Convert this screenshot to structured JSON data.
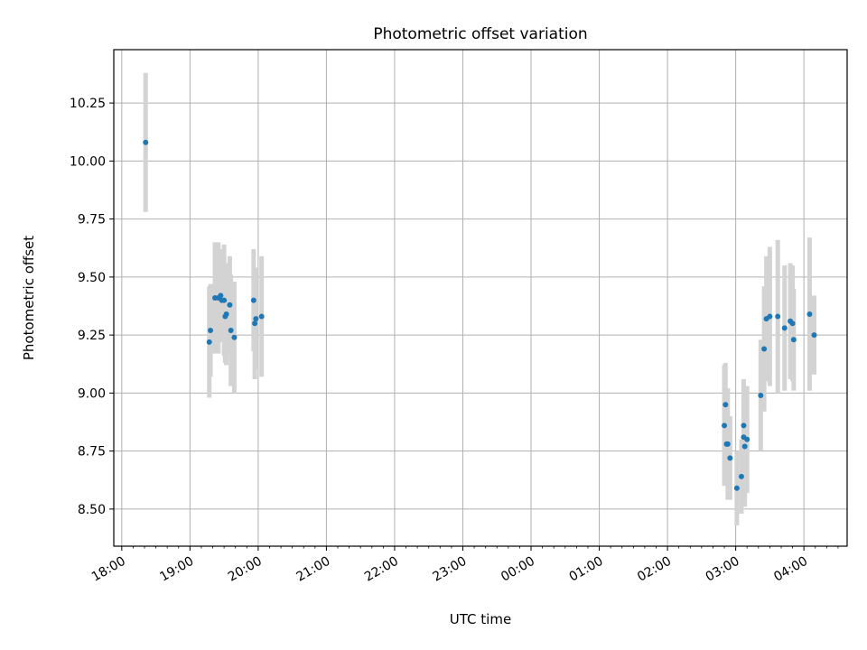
{
  "chart_data": {
    "type": "scatter",
    "title": "Photometric offset variation",
    "xlabel": "UTC time",
    "ylabel": "Photometric offset",
    "x_axis": "time (hours from 18:00 UTC, wrapping past midnight)",
    "xlim": [
      "17:53",
      "04:38"
    ],
    "ylim": [
      8.34,
      10.48
    ],
    "x_ticks": [
      "18:00",
      "19:00",
      "20:00",
      "21:00",
      "22:00",
      "23:00",
      "00:00",
      "01:00",
      "02:00",
      "03:00",
      "04:00"
    ],
    "y_ticks": [
      "8.50",
      "8.75",
      "9.00",
      "9.25",
      "9.50",
      "9.75",
      "10.00",
      "10.25"
    ],
    "grid": true,
    "marker_color": "#1f77b4",
    "errorbar_color": "#d3d3d3",
    "points": [
      {
        "t": "18:21",
        "y": 10.08,
        "err": 0.3
      },
      {
        "t": "19:17",
        "y": 9.22,
        "err": 0.24
      },
      {
        "t": "19:18",
        "y": 9.27,
        "err": 0.2
      },
      {
        "t": "19:22",
        "y": 9.41,
        "err": 0.24
      },
      {
        "t": "19:25",
        "y": 9.41,
        "err": 0.24
      },
      {
        "t": "19:27",
        "y": 9.42,
        "err": 0.2
      },
      {
        "t": "19:28",
        "y": 9.4,
        "err": 0.18
      },
      {
        "t": "19:30",
        "y": 9.4,
        "err": 0.24
      },
      {
        "t": "19:31",
        "y": 9.33,
        "err": 0.2
      },
      {
        "t": "19:32",
        "y": 9.34,
        "err": 0.22
      },
      {
        "t": "19:35",
        "y": 9.38,
        "err": 0.21
      },
      {
        "t": "19:36",
        "y": 9.27,
        "err": 0.24
      },
      {
        "t": "19:39",
        "y": 9.24,
        "err": 0.24
      },
      {
        "t": "19:56",
        "y": 9.4,
        "err": 0.22
      },
      {
        "t": "19:57",
        "y": 9.3,
        "err": 0.24
      },
      {
        "t": "19:58",
        "y": 9.32,
        "err": 0.22
      },
      {
        "t": "20:03",
        "y": 9.33,
        "err": 0.26
      },
      {
        "t": "02:50",
        "y": 8.86,
        "err": 0.26
      },
      {
        "t": "02:51",
        "y": 8.95,
        "err": 0.18
      },
      {
        "t": "02:52",
        "y": 8.78,
        "err": 0.18
      },
      {
        "t": "02:53",
        "y": 8.78,
        "err": 0.24
      },
      {
        "t": "02:55",
        "y": 8.72,
        "err": 0.18
      },
      {
        "t": "03:01",
        "y": 8.59,
        "err": 0.16
      },
      {
        "t": "03:05",
        "y": 8.64,
        "err": 0.16
      },
      {
        "t": "03:07",
        "y": 8.86,
        "err": 0.2
      },
      {
        "t": "03:07",
        "y": 8.81,
        "err": 0.25
      },
      {
        "t": "03:08",
        "y": 8.77,
        "err": 0.26
      },
      {
        "t": "03:10",
        "y": 8.8,
        "err": 0.23
      },
      {
        "t": "03:22",
        "y": 8.99,
        "err": 0.24
      },
      {
        "t": "03:25",
        "y": 9.19,
        "err": 0.27
      },
      {
        "t": "03:27",
        "y": 9.32,
        "err": 0.27
      },
      {
        "t": "03:30",
        "y": 9.33,
        "err": 0.3
      },
      {
        "t": "03:37",
        "y": 9.33,
        "err": 0.33
      },
      {
        "t": "03:43",
        "y": 9.28,
        "err": 0.27
      },
      {
        "t": "03:48",
        "y": 9.31,
        "err": 0.25
      },
      {
        "t": "03:50",
        "y": 9.3,
        "err": 0.25
      },
      {
        "t": "03:51",
        "y": 9.23,
        "err": 0.22
      },
      {
        "t": "04:05",
        "y": 9.34,
        "err": 0.33
      },
      {
        "t": "04:09",
        "y": 9.25,
        "err": 0.17
      }
    ]
  }
}
